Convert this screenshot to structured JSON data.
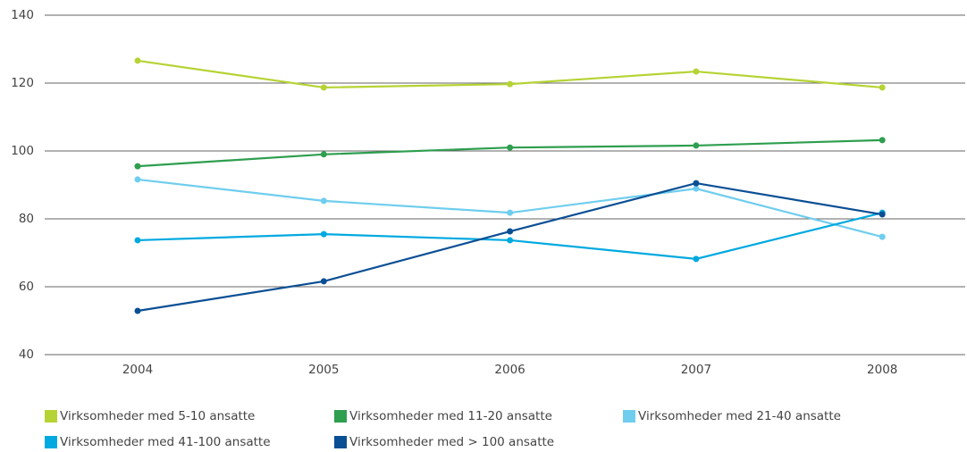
{
  "chart_data": {
    "type": "line",
    "categories": [
      "2004",
      "2005",
      "2006",
      "2007",
      "2008"
    ],
    "series": [
      {
        "name": "Virksomheder med 5-10 ansatte",
        "color": "#b5d334",
        "values": [
          126.6,
          118.7,
          119.7,
          123.4,
          118.7
        ]
      },
      {
        "name": "Virksomheder med 11-20 ansatte",
        "color": "#2e9e4f",
        "values": [
          95.5,
          99,
          101,
          101.6,
          103.2
        ]
      },
      {
        "name": "Virksomheder med 21-40 ansatte",
        "color": "#6fcdee",
        "values": [
          91.6,
          85.3,
          81.8,
          88.9,
          74.7
        ]
      },
      {
        "name": "Virksomheder med 41-100 ansatte",
        "color": "#00a9e0",
        "values": [
          73.7,
          75.5,
          73.7,
          68.2,
          81.8
        ]
      },
      {
        "name": "Virksomheder med > 100 ansatte",
        "color": "#0a4f94",
        "values": [
          52.9,
          61.6,
          76.3,
          90.5,
          81.3
        ]
      }
    ],
    "ylim": [
      40,
      140
    ],
    "yticks": [
      40,
      60,
      80,
      100,
      120,
      140
    ],
    "grid": true,
    "legend": "bottom"
  }
}
